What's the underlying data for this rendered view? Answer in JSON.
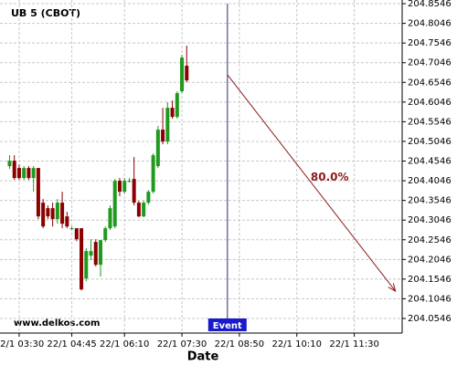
{
  "chart_data": {
    "type": "candlestick",
    "title": "UB 5 (CBOT)",
    "x_label": "Date",
    "watermark": "www.delkos.com",
    "up_color": "#1f9a1f",
    "down_color": "#8b0000",
    "grid": true,
    "open": [
      204.4417,
      204.4556,
      204.437,
      204.4115,
      204.437,
      204.4115,
      204.437,
      204.3489,
      204.3349,
      204.3349,
      204.3071,
      204.3489,
      204.3141,
      204.2839,
      204.2839,
      204.2839,
      204.1563,
      204.2143,
      204.2491,
      204.1911,
      204.2537,
      204.2839,
      204.2885,
      204.4045,
      204.3767,
      204.4045,
      204.4092,
      204.3489,
      204.3141,
      204.3489,
      204.3767,
      204.4417,
      204.5345,
      204.5043,
      204.5901,
      204.5669,
      204.6319,
      204.6969
    ],
    "high": [
      204.4695,
      204.4695,
      204.4463,
      204.4417,
      204.4417,
      204.4417,
      204.437,
      204.3581,
      204.3419,
      204.3489,
      204.3581,
      204.3767,
      204.3257,
      204.2885,
      204.2839,
      204.2839,
      204.2329,
      204.2561,
      204.2561,
      204.2537,
      204.2885,
      204.3419,
      204.4092,
      204.4115,
      204.4115,
      204.4115,
      204.4649,
      204.3535,
      204.3535,
      204.3813,
      204.4741,
      204.5437,
      204.5901,
      204.6041,
      204.6087,
      204.6319,
      204.7247,
      204.7479
    ],
    "low": [
      204.4347,
      204.4069,
      204.4069,
      204.4069,
      204.4069,
      204.3767,
      204.3071,
      204.2839,
      204.3071,
      204.2885,
      204.2955,
      204.2839,
      204.2839,
      204.2793,
      204.2514,
      204.1261,
      204.1493,
      204.2027,
      204.1865,
      204.1609,
      204.2491,
      204.2793,
      204.2839,
      204.3651,
      204.3721,
      204.3999,
      204.3419,
      204.3117,
      204.3117,
      204.3442,
      204.3721,
      204.437,
      204.4973,
      204.4973,
      204.5623,
      204.5623,
      204.6273,
      204.6551
    ],
    "close": [
      204.4556,
      204.4115,
      204.4115,
      204.437,
      204.4115,
      204.437,
      204.3141,
      204.2885,
      204.3141,
      204.3071,
      204.3489,
      204.2955,
      204.2885,
      204.2839,
      204.2561,
      204.1285,
      204.2259,
      204.2259,
      204.1911,
      204.2537,
      204.2839,
      204.3349,
      204.4045,
      204.3767,
      204.4045,
      204.4045,
      204.3489,
      204.3141,
      204.3489,
      204.3767,
      204.4695,
      204.5345,
      204.5043,
      204.5901,
      204.5669,
      204.6273,
      204.7177,
      204.6597
    ],
    "xlim": [
      -2,
      82
    ],
    "xticks": [
      {
        "value": 2,
        "label": "22/1 03:30"
      },
      {
        "value": 13,
        "label": "22/1 04:45"
      },
      {
        "value": 24,
        "label": "22/1 06:10"
      },
      {
        "value": 36,
        "label": "22/1 07:30"
      },
      {
        "value": 48,
        "label": "22/1 08:50"
      },
      {
        "value": 60,
        "label": "22/1 10:10"
      },
      {
        "value": 72,
        "label": "22/1 11:30"
      }
    ],
    "ylim": [
      204.0175,
      204.864
    ],
    "yticks": [
      204.0546,
      204.1046,
      204.1546,
      204.2046,
      204.2546,
      204.3046,
      204.3546,
      204.4046,
      204.4546,
      204.5046,
      204.5546,
      204.6046,
      204.6546,
      204.7046,
      204.7546,
      204.8046,
      204.8546
    ],
    "event": {
      "x": 45.5,
      "label": "Event",
      "color": "#1a1acc"
    },
    "arrow": {
      "x": [
        45.5,
        80.6
      ],
      "y": [
        204.674,
        204.124
      ],
      "label": "80.0%",
      "color": "#8b1a1a"
    }
  }
}
